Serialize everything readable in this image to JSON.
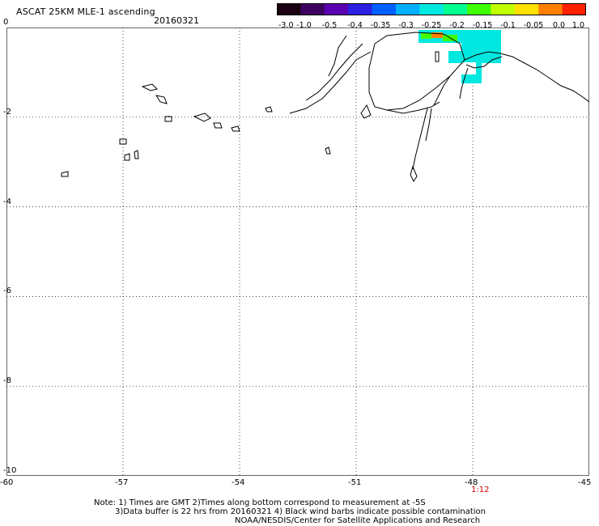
{
  "header": {
    "title": "ASCAT 25KM MLE-1 ascending",
    "date": "20160321"
  },
  "colorbar": {
    "labels": [
      "-3.0",
      "-1.0",
      "-0.5",
      "-0.4",
      "-0.35",
      "-0.3",
      "-0.25",
      "-0.2",
      "-0.15",
      "-0.1",
      "-0.05",
      "0.0",
      "1.0"
    ],
    "colors": [
      "#1a0010",
      "#3b0060",
      "#5a00b0",
      "#2a20e0",
      "#0060ff",
      "#00b0ff",
      "#00e8e0",
      "#00ff90",
      "#40ff00",
      "#c0ff00",
      "#ffe000",
      "#ff8000",
      "#ff2000"
    ]
  },
  "chart_data": {
    "type": "map",
    "x_ticks": [
      "-60",
      "-57",
      "-54",
      "-51",
      "-48",
      "-45"
    ],
    "y_ticks": [
      "0",
      "-2",
      "-4",
      "-6",
      "-8",
      "-10"
    ],
    "xlim": [
      -60,
      -45
    ],
    "ylim": [
      -10,
      0
    ],
    "grid": true,
    "time_labels": [
      {
        "lon": -48,
        "text": "1:12"
      }
    ]
  },
  "footer": {
    "line1": "Note: 1) Times are GMT 2)Times along bottom correspond to measurement at -5S",
    "line2": "3)Data buffer is 22 hrs from 20160321 4) Black wind barbs indicate possible contamination",
    "line3": "NOAA/NESDIS/Center for Satellite Applications and Research"
  }
}
